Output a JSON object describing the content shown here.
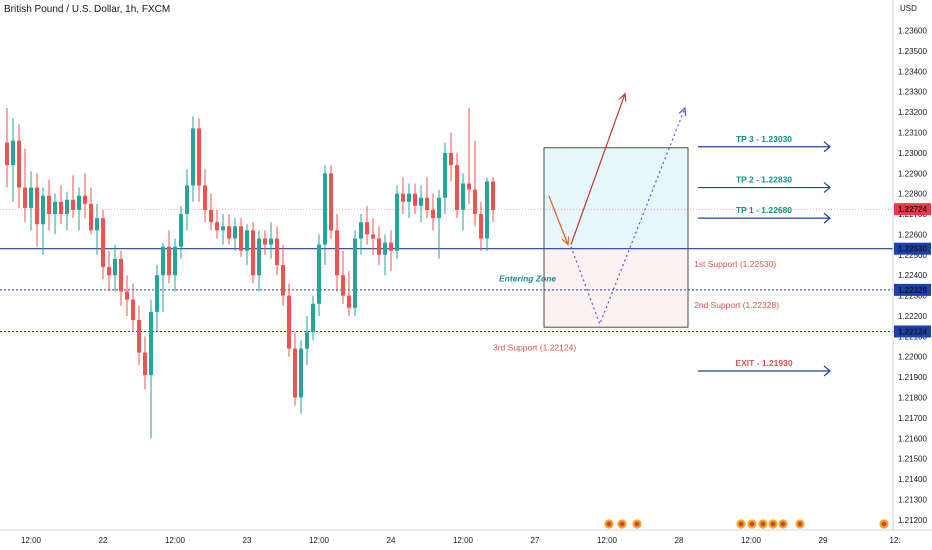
{
  "header": {
    "title": "British Pound / U.S. Dollar, 1h, FXCM",
    "currency": "USD"
  },
  "colors": {
    "up": "#26a69a",
    "down": "#ef5350",
    "blue": "#1e3fae",
    "tp_text": "#1a8c82",
    "support_text": "#e05050",
    "zone_upper": "#e6f6fb",
    "zone_lower": "#fcf2f2",
    "price_badge": "#f23645"
  },
  "chart_data": {
    "type": "candlestick",
    "ylim": [
      1.2115,
      1.2375
    ],
    "y_ticks": [
      "1.21200",
      "1.21300",
      "1.21400",
      "1.21500",
      "1.21600",
      "1.21700",
      "1.21800",
      "1.21900",
      "1.22000",
      "1.22100",
      "1.22200",
      "1.22300",
      "1.22400",
      "1.22500",
      "1.22600",
      "1.22700",
      "1.22800",
      "1.22900",
      "1.23000",
      "1.23100",
      "1.23200",
      "1.23300",
      "1.23400",
      "1.23500",
      "1.23600"
    ],
    "x_labels": [
      {
        "label": "12:00",
        "i": 4
      },
      {
        "label": "22",
        "i": 16
      },
      {
        "label": "12:00",
        "i": 28
      },
      {
        "label": "23",
        "i": 40
      },
      {
        "label": "12:00",
        "i": 52
      },
      {
        "label": "24",
        "i": 64
      },
      {
        "label": "12:00",
        "i": 76
      },
      {
        "label": "27",
        "i": 88
      },
      {
        "label": "12:00",
        "i": 100
      },
      {
        "label": "28",
        "i": 112
      },
      {
        "label": "12:00",
        "i": 124
      },
      {
        "label": "29",
        "i": 136
      },
      {
        "label": "12:",
        "i": 148
      }
    ],
    "price_badges": [
      {
        "value": 1.22724,
        "label": "1.22724"
      },
      {
        "value": 1.2253,
        "label": "1.22530"
      },
      {
        "value": 1.22328,
        "label": "1.22328"
      },
      {
        "value": 1.22124,
        "label": "1.22124"
      }
    ],
    "levels": [
      {
        "value": 1.2253,
        "style": "solid"
      },
      {
        "value": 1.22328,
        "style": "dotted"
      },
      {
        "value": 1.22124,
        "style": "dotted"
      }
    ],
    "current_price": 1.22724,
    "zone": {
      "i_start": 89.5,
      "i_end": 113.5,
      "top": 1.23025,
      "mid": 1.2253,
      "bottom": 1.22145
    },
    "tp_levels": [
      {
        "label": "TP 3 - 1.23030",
        "value": 1.2303
      },
      {
        "label": "TP 2 - 1.22830",
        "value": 1.2283
      },
      {
        "label": "TP 1 - 1.22680",
        "value": 1.2268
      }
    ],
    "exit": {
      "label": "EXIT - 1.21930",
      "value": 1.2193
    },
    "supports": [
      {
        "label": "1st Support (1.22530)",
        "i": 114.5,
        "value": 1.2244
      },
      {
        "label": "2nd Support (1.22328)",
        "i": 114.5,
        "value": 1.2224
      },
      {
        "label": "3rd Support (1.22124)",
        "i": 81,
        "value": 1.2203
      }
    ],
    "zone_label": {
      "text": "Entering Zone",
      "i": 82,
      "value": 1.2237
    },
    "paths": [
      {
        "style": "solid-orange",
        "points": [
          [
            90.3,
            1.2279
          ],
          [
            93.5,
            1.2255
          ]
        ]
      },
      {
        "style": "solid-red",
        "points": [
          [
            94,
            1.2255
          ],
          [
            103,
            1.2329
          ]
        ]
      },
      {
        "style": "dotted",
        "points": [
          [
            94,
            1.2254
          ],
          [
            98.8,
            1.2216
          ],
          [
            113,
            1.2322
          ]
        ]
      }
    ],
    "candles": [
      [
        1.2305,
        1.2322,
        1.2283,
        1.2294
      ],
      [
        1.2294,
        1.2317,
        1.2276,
        1.2306
      ],
      [
        1.2306,
        1.2314,
        1.2273,
        1.2283
      ],
      [
        1.2283,
        1.2302,
        1.2266,
        1.2273
      ],
      [
        1.2273,
        1.2291,
        1.2262,
        1.2283
      ],
      [
        1.2283,
        1.229,
        1.2254,
        1.2265
      ],
      [
        1.2265,
        1.2283,
        1.225,
        1.2279
      ],
      [
        1.2279,
        1.2287,
        1.2262,
        1.227
      ],
      [
        1.227,
        1.228,
        1.226,
        1.2276
      ],
      [
        1.2276,
        1.2284,
        1.2265,
        1.227
      ],
      [
        1.227,
        1.2281,
        1.2262,
        1.2277
      ],
      [
        1.2277,
        1.2289,
        1.2268,
        1.2272
      ],
      [
        1.2272,
        1.2283,
        1.2262,
        1.2279
      ],
      [
        1.2279,
        1.229,
        1.2268,
        1.2275
      ],
      [
        1.2275,
        1.2283,
        1.226,
        1.2262
      ],
      [
        1.2262,
        1.2275,
        1.225,
        1.2268
      ],
      [
        1.2268,
        1.2272,
        1.2238,
        1.2244
      ],
      [
        1.2244,
        1.2252,
        1.2232,
        1.224
      ],
      [
        1.224,
        1.2255,
        1.2232,
        1.2248
      ],
      [
        1.2248,
        1.2252,
        1.2225,
        1.2232
      ],
      [
        1.2232,
        1.224,
        1.222,
        1.2228
      ],
      [
        1.2228,
        1.2236,
        1.2212,
        1.2218
      ],
      [
        1.2218,
        1.2225,
        1.2196,
        1.2202
      ],
      [
        1.2202,
        1.221,
        1.2184,
        1.2191
      ],
      [
        1.2191,
        1.2228,
        1.216,
        1.2222
      ],
      [
        1.2222,
        1.2245,
        1.2212,
        1.224
      ],
      [
        1.224,
        1.2256,
        1.2222,
        1.2254
      ],
      [
        1.2254,
        1.2262,
        1.2236,
        1.224
      ],
      [
        1.224,
        1.2258,
        1.2232,
        1.2254
      ],
      [
        1.2254,
        1.2274,
        1.2248,
        1.227
      ],
      [
        1.227,
        1.2292,
        1.2262,
        1.2284
      ],
      [
        1.2284,
        1.2318,
        1.2276,
        1.2312
      ],
      [
        1.2312,
        1.2317,
        1.2276,
        1.2284
      ],
      [
        1.2284,
        1.2292,
        1.2266,
        1.2272
      ],
      [
        1.2272,
        1.228,
        1.2262,
        1.2266
      ],
      [
        1.2266,
        1.2272,
        1.2258,
        1.2262
      ],
      [
        1.2262,
        1.227,
        1.2255,
        1.2264
      ],
      [
        1.2264,
        1.227,
        1.2255,
        1.2258
      ],
      [
        1.2258,
        1.2268,
        1.2252,
        1.2264
      ],
      [
        1.2264,
        1.2268,
        1.2249,
        1.2252
      ],
      [
        1.2252,
        1.2265,
        1.2245,
        1.2262
      ],
      [
        1.2262,
        1.2266,
        1.2236,
        1.224
      ],
      [
        1.224,
        1.2262,
        1.2232,
        1.2258
      ],
      [
        1.2258,
        1.2262,
        1.225,
        1.2255
      ],
      [
        1.2255,
        1.2266,
        1.2248,
        1.2258
      ],
      [
        1.2258,
        1.2264,
        1.224,
        1.2245
      ],
      [
        1.2245,
        1.2255,
        1.2225,
        1.223
      ],
      [
        1.223,
        1.2236,
        1.22,
        1.2204
      ],
      [
        1.2204,
        1.2212,
        1.2176,
        1.218
      ],
      [
        1.218,
        1.2208,
        1.2172,
        1.2204
      ],
      [
        1.2204,
        1.222,
        1.2196,
        1.2212
      ],
      [
        1.2212,
        1.223,
        1.2208,
        1.2226
      ],
      [
        1.2226,
        1.226,
        1.222,
        1.2255
      ],
      [
        1.2255,
        1.2294,
        1.2245,
        1.229
      ],
      [
        1.229,
        1.2294,
        1.2258,
        1.2262
      ],
      [
        1.2262,
        1.227,
        1.2232,
        1.224
      ],
      [
        1.224,
        1.2252,
        1.2226,
        1.223
      ],
      [
        1.223,
        1.2242,
        1.222,
        1.2224
      ],
      [
        1.2224,
        1.2262,
        1.222,
        1.2258
      ],
      [
        1.2258,
        1.227,
        1.225,
        1.2266
      ],
      [
        1.2266,
        1.2274,
        1.2255,
        1.226
      ],
      [
        1.226,
        1.2268,
        1.225,
        1.2258
      ],
      [
        1.2258,
        1.2264,
        1.2245,
        1.225
      ],
      [
        1.225,
        1.226,
        1.224,
        1.2256
      ],
      [
        1.2256,
        1.2262,
        1.2242,
        1.2252
      ],
      [
        1.2252,
        1.2284,
        1.2248,
        1.228
      ],
      [
        1.228,
        1.2288,
        1.227,
        1.2276
      ],
      [
        1.2276,
        1.2285,
        1.2268,
        1.228
      ],
      [
        1.228,
        1.2285,
        1.227,
        1.2274
      ],
      [
        1.2274,
        1.2284,
        1.2266,
        1.2278
      ],
      [
        1.2278,
        1.2288,
        1.2268,
        1.2272
      ],
      [
        1.2272,
        1.228,
        1.2262,
        1.2268
      ],
      [
        1.2268,
        1.2282,
        1.2248,
        1.2278
      ],
      [
        1.2278,
        1.2305,
        1.227,
        1.23
      ],
      [
        1.23,
        1.231,
        1.2286,
        1.2294
      ],
      [
        1.2294,
        1.23,
        1.2268,
        1.2272
      ],
      [
        1.2272,
        1.229,
        1.2262,
        1.2285
      ],
      [
        1.2285,
        1.2322,
        1.2275,
        1.2282
      ],
      [
        1.2282,
        1.2306,
        1.2264,
        1.227
      ],
      [
        1.227,
        1.2276,
        1.2252,
        1.2258
      ],
      [
        1.2258,
        1.2288,
        1.2252,
        1.2286
      ],
      [
        1.2286,
        1.2288,
        1.2266,
        1.2272
      ]
    ]
  }
}
